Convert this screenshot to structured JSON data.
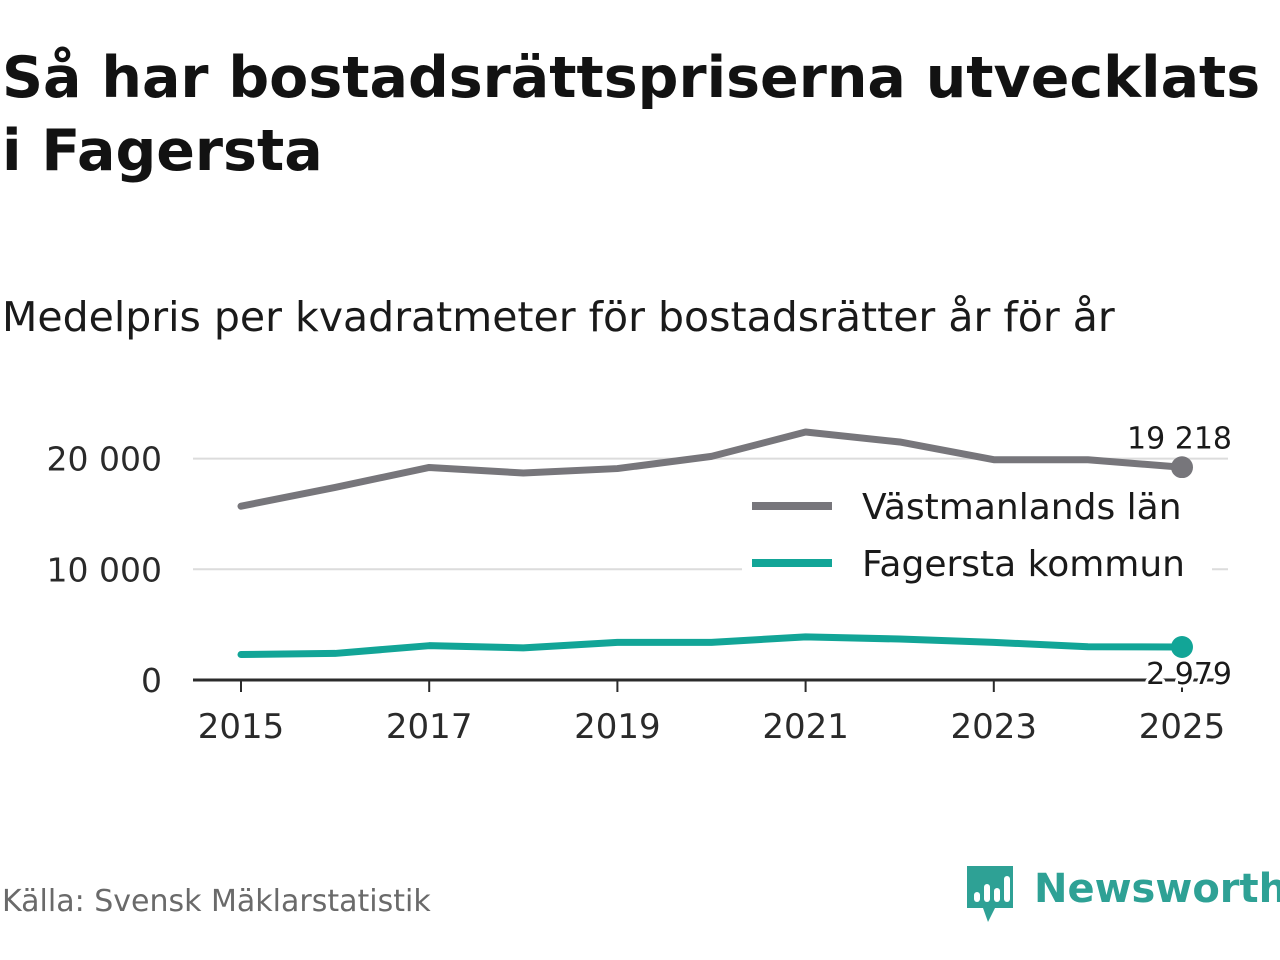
{
  "title": "Så har bostadsrättspriserna utvecklats i Fagersta",
  "subtitle": "Medelpris per kvadratmeter för bostadsrätter år för år",
  "source": "Källa: Svensk Mäklarstatistik",
  "brand": {
    "name": "Newsworthy",
    "icon": "newsworthy-logo-icon",
    "color": "#2ea195"
  },
  "chart_data": {
    "type": "line",
    "title": "Så har bostadsrättspriserna utvecklats i Fagersta",
    "subtitle": "Medelpris per kvadratmeter för bostadsrätter år för år",
    "xlabel": "",
    "ylabel": "",
    "x": [
      2015,
      2016,
      2017,
      2018,
      2019,
      2020,
      2021,
      2022,
      2023,
      2024,
      2025
    ],
    "xticks": [
      2015,
      2017,
      2019,
      2021,
      2023,
      2025
    ],
    "xtick_labels": [
      "2015",
      "2017",
      "2019",
      "2021",
      "2023",
      "2025"
    ],
    "yticks": [
      0,
      10000,
      20000
    ],
    "ytick_labels": [
      "0",
      "10 000",
      "20 000"
    ],
    "ylim": [
      0,
      22000
    ],
    "xlim": [
      2015,
      2025
    ],
    "grid": true,
    "legend_position": "right",
    "series": [
      {
        "name": "Västmanlands län",
        "color": "#77767b",
        "values": [
          15700,
          17400,
          19200,
          18700,
          19100,
          20200,
          22400,
          21500,
          19900,
          19900,
          19218
        ],
        "end_label": "19 218"
      },
      {
        "name": "Fagersta kommun",
        "color": "#12a597",
        "values": [
          2300,
          2400,
          3100,
          2900,
          3400,
          3400,
          3900,
          3700,
          3400,
          3000,
          2979
        ],
        "end_label": "2 979"
      }
    ]
  }
}
